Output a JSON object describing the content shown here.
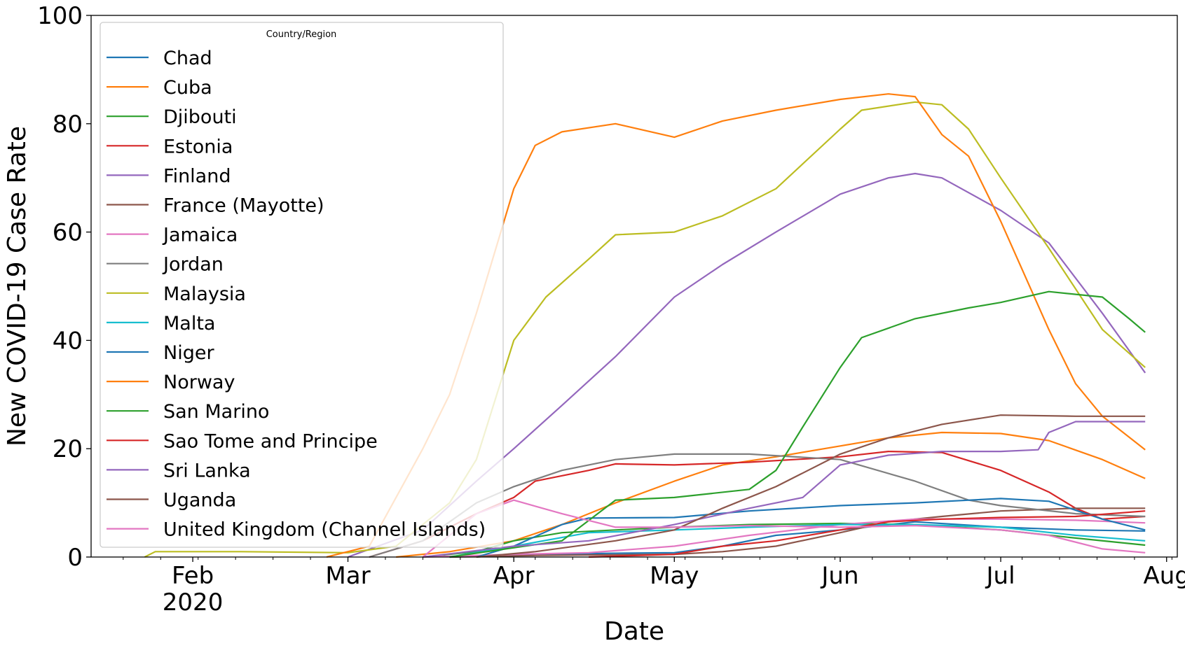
{
  "chart_data": {
    "type": "line",
    "title": "",
    "xlabel": "Date",
    "ylabel": "New COVID-19 Case Rate",
    "ylim": [
      0,
      100
    ],
    "xlim": [
      "2020-01-13",
      "2020-08-03"
    ],
    "yticks": [
      0,
      20,
      40,
      60,
      80,
      100
    ],
    "ytick_labels": [
      "0",
      "20",
      "40",
      "60",
      "80",
      "100"
    ],
    "xticks": [
      {
        "date": "2020-02-01",
        "label": "Feb",
        "sublabel": "2020"
      },
      {
        "date": "2020-03-01",
        "label": "Mar",
        "sublabel": ""
      },
      {
        "date": "2020-04-01",
        "label": "Apr",
        "sublabel": ""
      },
      {
        "date": "2020-05-01",
        "label": "May",
        "sublabel": ""
      },
      {
        "date": "2020-06-01",
        "label": "Jun",
        "sublabel": ""
      },
      {
        "date": "2020-07-01",
        "label": "Jul",
        "sublabel": ""
      },
      {
        "date": "2020-08-01",
        "label": "Aug",
        "sublabel": ""
      }
    ],
    "grid": false,
    "legend": {
      "title": "Country/Region",
      "placement": "upper-left"
    },
    "series": [
      {
        "name": "Chad",
        "color": "#1f77b4",
        "points": [
          [
            "2020-03-20",
            0
          ],
          [
            "2020-04-05",
            0.5
          ],
          [
            "2020-04-20",
            0.7
          ],
          [
            "2020-05-01",
            0.8
          ],
          [
            "2020-05-10",
            2
          ],
          [
            "2020-05-20",
            4
          ],
          [
            "2020-06-01",
            5
          ],
          [
            "2020-06-15",
            6.5
          ],
          [
            "2020-07-01",
            5.5
          ],
          [
            "2020-07-15",
            5
          ],
          [
            "2020-07-28",
            4.8
          ]
        ]
      },
      {
        "name": "Cuba",
        "color": "#ff7f0e",
        "points": [
          [
            "2020-03-10",
            0
          ],
          [
            "2020-03-20",
            1
          ],
          [
            "2020-04-01",
            3
          ],
          [
            "2020-04-10",
            6
          ],
          [
            "2020-04-20",
            10
          ],
          [
            "2020-05-01",
            14
          ],
          [
            "2020-05-10",
            17
          ],
          [
            "2020-05-20",
            18.5
          ],
          [
            "2020-06-01",
            20.5
          ],
          [
            "2020-06-10",
            22
          ],
          [
            "2020-06-20",
            23
          ],
          [
            "2020-07-01",
            22.8
          ],
          [
            "2020-07-10",
            21.5
          ],
          [
            "2020-07-20",
            18
          ],
          [
            "2020-07-28",
            14.5
          ]
        ]
      },
      {
        "name": "Djibouti",
        "color": "#2ca02c",
        "points": [
          [
            "2020-03-15",
            0
          ],
          [
            "2020-03-25",
            1
          ],
          [
            "2020-04-01",
            3
          ],
          [
            "2020-04-10",
            4.5
          ],
          [
            "2020-04-20",
            5
          ],
          [
            "2020-05-01",
            5.5
          ],
          [
            "2020-05-15",
            6
          ],
          [
            "2020-06-01",
            6.2
          ],
          [
            "2020-06-15",
            6
          ],
          [
            "2020-07-01",
            5
          ],
          [
            "2020-07-15",
            3.5
          ],
          [
            "2020-07-28",
            2.2
          ]
        ]
      },
      {
        "name": "Estonia",
        "color": "#d62728",
        "points": [
          [
            "2020-03-05",
            0
          ],
          [
            "2020-03-15",
            3
          ],
          [
            "2020-03-25",
            8
          ],
          [
            "2020-04-01",
            11
          ],
          [
            "2020-04-05",
            14
          ],
          [
            "2020-04-15",
            16
          ],
          [
            "2020-04-20",
            17.2
          ],
          [
            "2020-05-01",
            17
          ],
          [
            "2020-05-15",
            17.5
          ],
          [
            "2020-06-01",
            18.5
          ],
          [
            "2020-06-10",
            19.5
          ],
          [
            "2020-06-20",
            19.3
          ],
          [
            "2020-07-01",
            16
          ],
          [
            "2020-07-10",
            12
          ],
          [
            "2020-07-15",
            9
          ],
          [
            "2020-07-20",
            7
          ],
          [
            "2020-07-28",
            7.5
          ]
        ]
      },
      {
        "name": "Finland",
        "color": "#9467bd",
        "points": [
          [
            "2020-03-01",
            0
          ],
          [
            "2020-03-15",
            5
          ],
          [
            "2020-03-25",
            14
          ],
          [
            "2020-04-01",
            20
          ],
          [
            "2020-04-10",
            28
          ],
          [
            "2020-04-20",
            37
          ],
          [
            "2020-05-01",
            48
          ],
          [
            "2020-05-10",
            54
          ],
          [
            "2020-05-20",
            60
          ],
          [
            "2020-06-01",
            67
          ],
          [
            "2020-06-10",
            70
          ],
          [
            "2020-06-15",
            70.8
          ],
          [
            "2020-06-20",
            70
          ],
          [
            "2020-07-01",
            64
          ],
          [
            "2020-07-10",
            58
          ],
          [
            "2020-07-20",
            45
          ],
          [
            "2020-07-28",
            34
          ]
        ]
      },
      {
        "name": "France (Mayotte)",
        "color": "#8c564b",
        "points": [
          [
            "2020-03-20",
            0
          ],
          [
            "2020-04-05",
            0.3
          ],
          [
            "2020-05-01",
            0.5
          ],
          [
            "2020-05-10",
            1
          ],
          [
            "2020-05-20",
            2
          ],
          [
            "2020-06-01",
            4.5
          ],
          [
            "2020-06-10",
            6.5
          ],
          [
            "2020-06-20",
            7.5
          ],
          [
            "2020-07-01",
            8.5
          ],
          [
            "2020-07-15",
            9
          ],
          [
            "2020-07-28",
            9
          ]
        ]
      },
      {
        "name": "Jamaica",
        "color": "#e377c2",
        "points": [
          [
            "2020-03-15",
            0
          ],
          [
            "2020-04-01",
            0.5
          ],
          [
            "2020-04-15",
            0.8
          ],
          [
            "2020-05-01",
            2
          ],
          [
            "2020-05-15",
            4
          ],
          [
            "2020-06-01",
            6
          ],
          [
            "2020-06-15",
            7
          ],
          [
            "2020-07-01",
            7
          ],
          [
            "2020-07-15",
            6.8
          ],
          [
            "2020-07-28",
            6.3
          ]
        ]
      },
      {
        "name": "Jordan",
        "color": "#7f7f7f",
        "points": [
          [
            "2020-03-05",
            0
          ],
          [
            "2020-03-15",
            3
          ],
          [
            "2020-03-25",
            10
          ],
          [
            "2020-04-01",
            13
          ],
          [
            "2020-04-10",
            16
          ],
          [
            "2020-04-20",
            18
          ],
          [
            "2020-05-01",
            19
          ],
          [
            "2020-05-15",
            19
          ],
          [
            "2020-06-01",
            18
          ],
          [
            "2020-06-15",
            14
          ],
          [
            "2020-06-25",
            10.5
          ],
          [
            "2020-07-01",
            9.5
          ],
          [
            "2020-07-15",
            8
          ],
          [
            "2020-07-28",
            7.5
          ]
        ]
      },
      {
        "name": "Malaysia",
        "color": "#bcbd22",
        "points": [
          [
            "2020-01-23",
            0
          ],
          [
            "2020-01-25",
            1
          ],
          [
            "2020-02-10",
            1
          ],
          [
            "2020-03-01",
            0.8
          ],
          [
            "2020-03-10",
            2
          ],
          [
            "2020-03-20",
            10
          ],
          [
            "2020-03-25",
            18
          ],
          [
            "2020-04-01",
            40
          ],
          [
            "2020-04-07",
            48
          ],
          [
            "2020-04-15",
            55
          ],
          [
            "2020-04-20",
            59.5
          ],
          [
            "2020-05-01",
            60
          ],
          [
            "2020-05-10",
            63
          ],
          [
            "2020-05-20",
            68
          ],
          [
            "2020-06-01",
            79
          ],
          [
            "2020-06-05",
            82.5
          ],
          [
            "2020-06-15",
            84
          ],
          [
            "2020-06-20",
            83.5
          ],
          [
            "2020-06-25",
            79
          ],
          [
            "2020-07-01",
            70
          ],
          [
            "2020-07-10",
            57
          ],
          [
            "2020-07-20",
            42
          ],
          [
            "2020-07-28",
            35
          ]
        ]
      },
      {
        "name": "Malta",
        "color": "#17becf",
        "points": [
          [
            "2020-03-20",
            0
          ],
          [
            "2020-04-01",
            2
          ],
          [
            "2020-04-15",
            4.5
          ],
          [
            "2020-05-01",
            5
          ],
          [
            "2020-05-15",
            5.5
          ],
          [
            "2020-06-01",
            6
          ],
          [
            "2020-06-15",
            6
          ],
          [
            "2020-07-01",
            5.5
          ],
          [
            "2020-07-15",
            4
          ],
          [
            "2020-07-28",
            3
          ]
        ]
      },
      {
        "name": "Niger",
        "color": "#1f77b4",
        "points": [
          [
            "2020-03-25",
            0
          ],
          [
            "2020-04-01",
            2
          ],
          [
            "2020-04-10",
            6
          ],
          [
            "2020-04-15",
            7.2
          ],
          [
            "2020-05-01",
            7.3
          ],
          [
            "2020-05-15",
            8.5
          ],
          [
            "2020-06-01",
            9.5
          ],
          [
            "2020-06-15",
            10
          ],
          [
            "2020-07-01",
            10.8
          ],
          [
            "2020-07-10",
            10.3
          ],
          [
            "2020-07-20",
            7
          ],
          [
            "2020-07-28",
            5
          ]
        ]
      },
      {
        "name": "Norway",
        "color": "#ff7f0e",
        "points": [
          [
            "2020-02-26",
            0
          ],
          [
            "2020-03-05",
            2
          ],
          [
            "2020-03-15",
            20
          ],
          [
            "2020-03-20",
            30
          ],
          [
            "2020-03-25",
            45
          ],
          [
            "2020-04-01",
            68
          ],
          [
            "2020-04-05",
            76
          ],
          [
            "2020-04-10",
            78.5
          ],
          [
            "2020-04-20",
            80
          ],
          [
            "2020-05-01",
            77.5
          ],
          [
            "2020-05-10",
            80.5
          ],
          [
            "2020-05-20",
            82.5
          ],
          [
            "2020-06-01",
            84.5
          ],
          [
            "2020-06-10",
            85.5
          ],
          [
            "2020-06-15",
            85
          ],
          [
            "2020-06-20",
            78
          ],
          [
            "2020-06-25",
            74
          ],
          [
            "2020-07-01",
            62
          ],
          [
            "2020-07-10",
            42
          ],
          [
            "2020-07-15",
            32
          ],
          [
            "2020-07-20",
            26
          ],
          [
            "2020-07-28",
            19.8
          ]
        ]
      },
      {
        "name": "San Marino",
        "color": "#2ca02c",
        "points": [
          [
            "2020-03-20",
            0
          ],
          [
            "2020-04-10",
            3
          ],
          [
            "2020-04-20",
            10.5
          ],
          [
            "2020-05-01",
            11
          ],
          [
            "2020-05-15",
            12.5
          ],
          [
            "2020-05-20",
            16
          ],
          [
            "2020-05-25",
            24
          ],
          [
            "2020-06-01",
            35
          ],
          [
            "2020-06-05",
            40.5
          ],
          [
            "2020-06-15",
            44
          ],
          [
            "2020-06-25",
            46
          ],
          [
            "2020-07-01",
            47
          ],
          [
            "2020-07-10",
            49
          ],
          [
            "2020-07-20",
            48
          ],
          [
            "2020-07-25",
            44
          ],
          [
            "2020-07-28",
            41.5
          ]
        ]
      },
      {
        "name": "Sao Tome and Principe",
        "color": "#d62728",
        "points": [
          [
            "2020-04-15",
            0
          ],
          [
            "2020-05-01",
            0.5
          ],
          [
            "2020-05-10",
            2
          ],
          [
            "2020-05-20",
            3
          ],
          [
            "2020-06-01",
            5
          ],
          [
            "2020-06-10",
            6.5
          ],
          [
            "2020-06-20",
            7
          ],
          [
            "2020-07-01",
            7.3
          ],
          [
            "2020-07-15",
            7.5
          ],
          [
            "2020-07-28",
            8.5
          ]
        ]
      },
      {
        "name": "Sri Lanka",
        "color": "#9467bd",
        "points": [
          [
            "2020-03-15",
            0
          ],
          [
            "2020-04-01",
            2
          ],
          [
            "2020-04-15",
            3
          ],
          [
            "2020-05-01",
            6
          ],
          [
            "2020-05-15",
            9
          ],
          [
            "2020-05-25",
            11
          ],
          [
            "2020-06-01",
            17
          ],
          [
            "2020-06-10",
            18.8
          ],
          [
            "2020-06-20",
            19.5
          ],
          [
            "2020-07-01",
            19.5
          ],
          [
            "2020-07-08",
            19.8
          ],
          [
            "2020-07-10",
            23
          ],
          [
            "2020-07-15",
            25
          ],
          [
            "2020-07-28",
            25
          ]
        ]
      },
      {
        "name": "Uganda",
        "color": "#8c564b",
        "points": [
          [
            "2020-03-25",
            0
          ],
          [
            "2020-04-05",
            1
          ],
          [
            "2020-04-20",
            3
          ],
          [
            "2020-05-01",
            5
          ],
          [
            "2020-05-10",
            9
          ],
          [
            "2020-05-20",
            13
          ],
          [
            "2020-06-01",
            19
          ],
          [
            "2020-06-10",
            22
          ],
          [
            "2020-06-20",
            24.5
          ],
          [
            "2020-07-01",
            26.2
          ],
          [
            "2020-07-15",
            26
          ],
          [
            "2020-07-28",
            26
          ]
        ]
      },
      {
        "name": "United Kingdom (Channel Islands)",
        "color": "#e377c2",
        "points": [
          [
            "2020-03-15",
            0
          ],
          [
            "2020-03-25",
            8
          ],
          [
            "2020-04-01",
            10.5
          ],
          [
            "2020-04-10",
            8
          ],
          [
            "2020-04-20",
            5.5
          ],
          [
            "2020-05-01",
            5.5
          ],
          [
            "2020-05-15",
            5.8
          ],
          [
            "2020-06-01",
            5.5
          ],
          [
            "2020-06-15",
            5.8
          ],
          [
            "2020-07-01",
            5
          ],
          [
            "2020-07-10",
            4
          ],
          [
            "2020-07-20",
            1.5
          ],
          [
            "2020-07-28",
            0.8
          ]
        ]
      }
    ]
  }
}
